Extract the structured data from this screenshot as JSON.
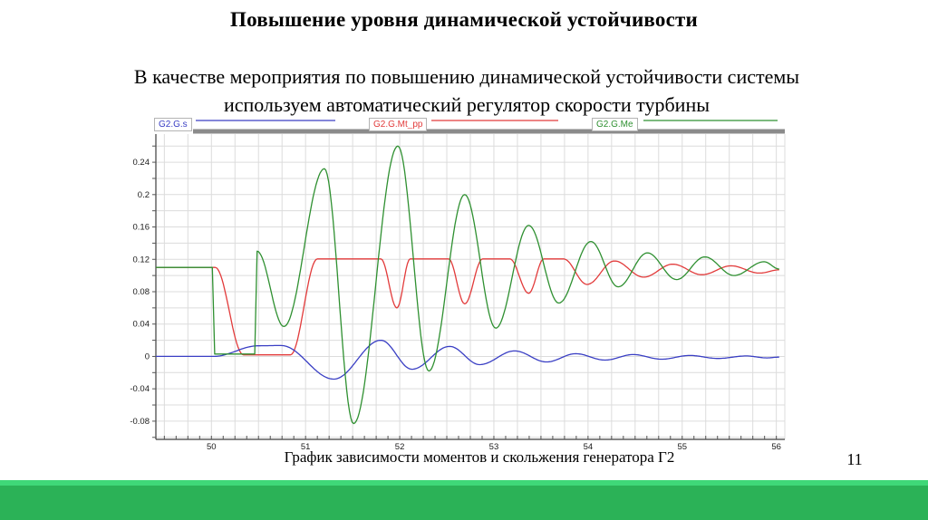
{
  "slide": {
    "title": "Повышение уровня динамической устойчивости",
    "body_line1": "В качестве мероприятия по повышению динамической устойчивости системы",
    "body_line2": "используем автоматический регулятор скорости турбины",
    "caption": "График зависимости моментов и скольжения генератора Г2",
    "page_number": "11",
    "footer_colors": {
      "light": "#3FD878",
      "dark": "#2BB257"
    }
  },
  "chart_data": {
    "type": "line",
    "title": "",
    "xlabel": "",
    "ylabel": "",
    "grid": true,
    "legend_position": "top",
    "x_range": [
      49.41,
      56.09
    ],
    "y_range": [
      -0.1025,
      0.2748
    ],
    "x_tick_labels": [
      "50",
      "51",
      "52",
      "53",
      "54",
      "55",
      "56"
    ],
    "y_tick_labels": [
      "0.24",
      "0.2",
      "0.16",
      "0.12",
      "0.08",
      "0.04",
      "0",
      "-0.04",
      "-0.08"
    ],
    "x_grid_step": 0.25,
    "y_grid_step": 0.02,
    "x_minor_tick_step": 0.125,
    "y_minor_tick_step": 0.02,
    "colors": {
      "axis": "#3d3d3d",
      "grid": "#dcdcdc",
      "top_bar": "#8b8b8b",
      "tick_text": "#1a1a1a"
    },
    "series": [
      {
        "name": "G2.G.s",
        "color": "#3a3fc4",
        "points": [
          [
            49.41,
            0.0
          ],
          [
            50.02,
            0.0
          ],
          [
            50.5,
            0.0132
          ],
          [
            50.74,
            0.0135
          ],
          [
            51.3,
            -0.028
          ],
          [
            51.8,
            0.02
          ],
          [
            52.13,
            -0.0158
          ],
          [
            52.53,
            0.0124
          ],
          [
            52.85,
            -0.0101
          ],
          [
            53.22,
            0.0068
          ],
          [
            53.56,
            -0.0068
          ],
          [
            53.87,
            0.0034
          ],
          [
            54.18,
            -0.0045
          ],
          [
            54.48,
            0.0023
          ],
          [
            54.78,
            -0.0034
          ],
          [
            55.08,
            0.0012
          ],
          [
            55.38,
            -0.0025
          ],
          [
            55.68,
            0.0006
          ],
          [
            55.9,
            -0.0018
          ],
          [
            56.03,
            -0.0008
          ]
        ]
      },
      {
        "name": "G2.G.Mt_pp",
        "color": "#e23b3b",
        "points": [
          [
            49.41,
            0.11
          ],
          [
            50.04,
            0.11
          ],
          [
            50.34,
            0.002
          ],
          [
            50.84,
            0.002
          ],
          [
            51.125,
            0.1205
          ],
          [
            51.8,
            0.1205
          ],
          [
            51.97,
            0.06
          ],
          [
            52.11,
            0.1205
          ],
          [
            52.52,
            0.1205
          ],
          [
            52.69,
            0.065
          ],
          [
            52.88,
            0.1205
          ],
          [
            53.17,
            0.1205
          ],
          [
            53.37,
            0.078
          ],
          [
            53.53,
            0.1205
          ],
          [
            53.74,
            0.1205
          ],
          [
            53.99,
            0.089
          ],
          [
            54.28,
            0.118
          ],
          [
            54.59,
            0.098
          ],
          [
            54.9,
            0.114
          ],
          [
            55.21,
            0.101
          ],
          [
            55.52,
            0.112
          ],
          [
            55.82,
            0.103
          ],
          [
            56.03,
            0.107
          ]
        ]
      },
      {
        "name": "G2.G.Me",
        "color": "#2f9031",
        "points": [
          [
            49.41,
            0.11
          ],
          [
            50.01,
            0.11
          ],
          [
            50.035,
            0.003
          ],
          [
            50.46,
            0.003
          ],
          [
            50.485,
            0.13
          ],
          [
            50.77,
            0.037
          ],
          [
            51.2,
            0.232
          ],
          [
            51.51,
            -0.083
          ],
          [
            51.98,
            0.26
          ],
          [
            52.31,
            -0.018
          ],
          [
            52.69,
            0.2
          ],
          [
            53.02,
            0.035
          ],
          [
            53.37,
            0.162
          ],
          [
            53.69,
            0.066
          ],
          [
            54.03,
            0.142
          ],
          [
            54.32,
            0.086
          ],
          [
            54.63,
            0.128
          ],
          [
            54.94,
            0.095
          ],
          [
            55.24,
            0.123
          ],
          [
            55.55,
            0.1
          ],
          [
            55.87,
            0.117
          ],
          [
            56.03,
            0.108
          ]
        ]
      }
    ]
  }
}
